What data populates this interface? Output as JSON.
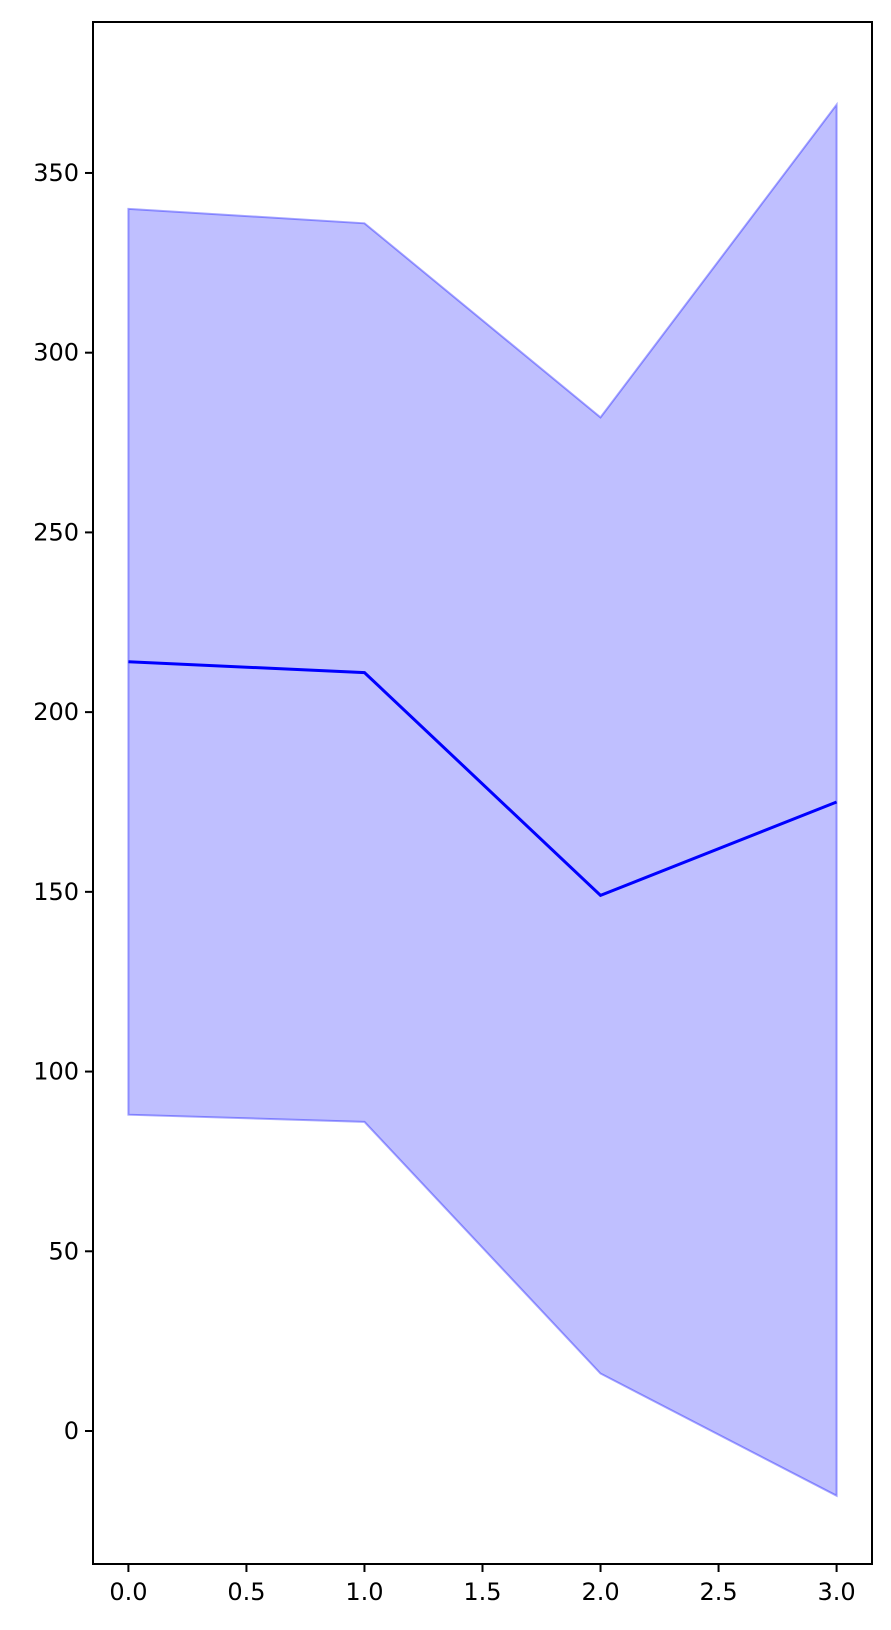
{
  "chart_data": {
    "type": "line",
    "title": "",
    "xlabel": "",
    "ylabel": "",
    "x": [
      0,
      1,
      2,
      3
    ],
    "series": [
      {
        "values": [
          214,
          211,
          149,
          175
        ],
        "band_upper": [
          340,
          336,
          282,
          369
        ],
        "band_lower": [
          88,
          86,
          16,
          -18
        ],
        "color": "#0000ff",
        "band_color": "#0000ff",
        "band_opacity": 0.25
      }
    ],
    "xlim": [
      -0.15,
      3.15
    ],
    "ylim": [
      -37,
      392
    ],
    "x_ticks": [
      0.0,
      0.5,
      1.0,
      1.5,
      2.0,
      2.5,
      3.0
    ],
    "x_tick_labels": [
      "0.0",
      "0.5",
      "1.0",
      "1.5",
      "2.0",
      "2.5",
      "3.0"
    ],
    "y_ticks": [
      0,
      50,
      100,
      150,
      200,
      250,
      300,
      350
    ],
    "y_tick_labels": [
      "0",
      "50",
      "100",
      "150",
      "200",
      "250",
      "300",
      "350"
    ],
    "grid": false,
    "legend": "none"
  }
}
